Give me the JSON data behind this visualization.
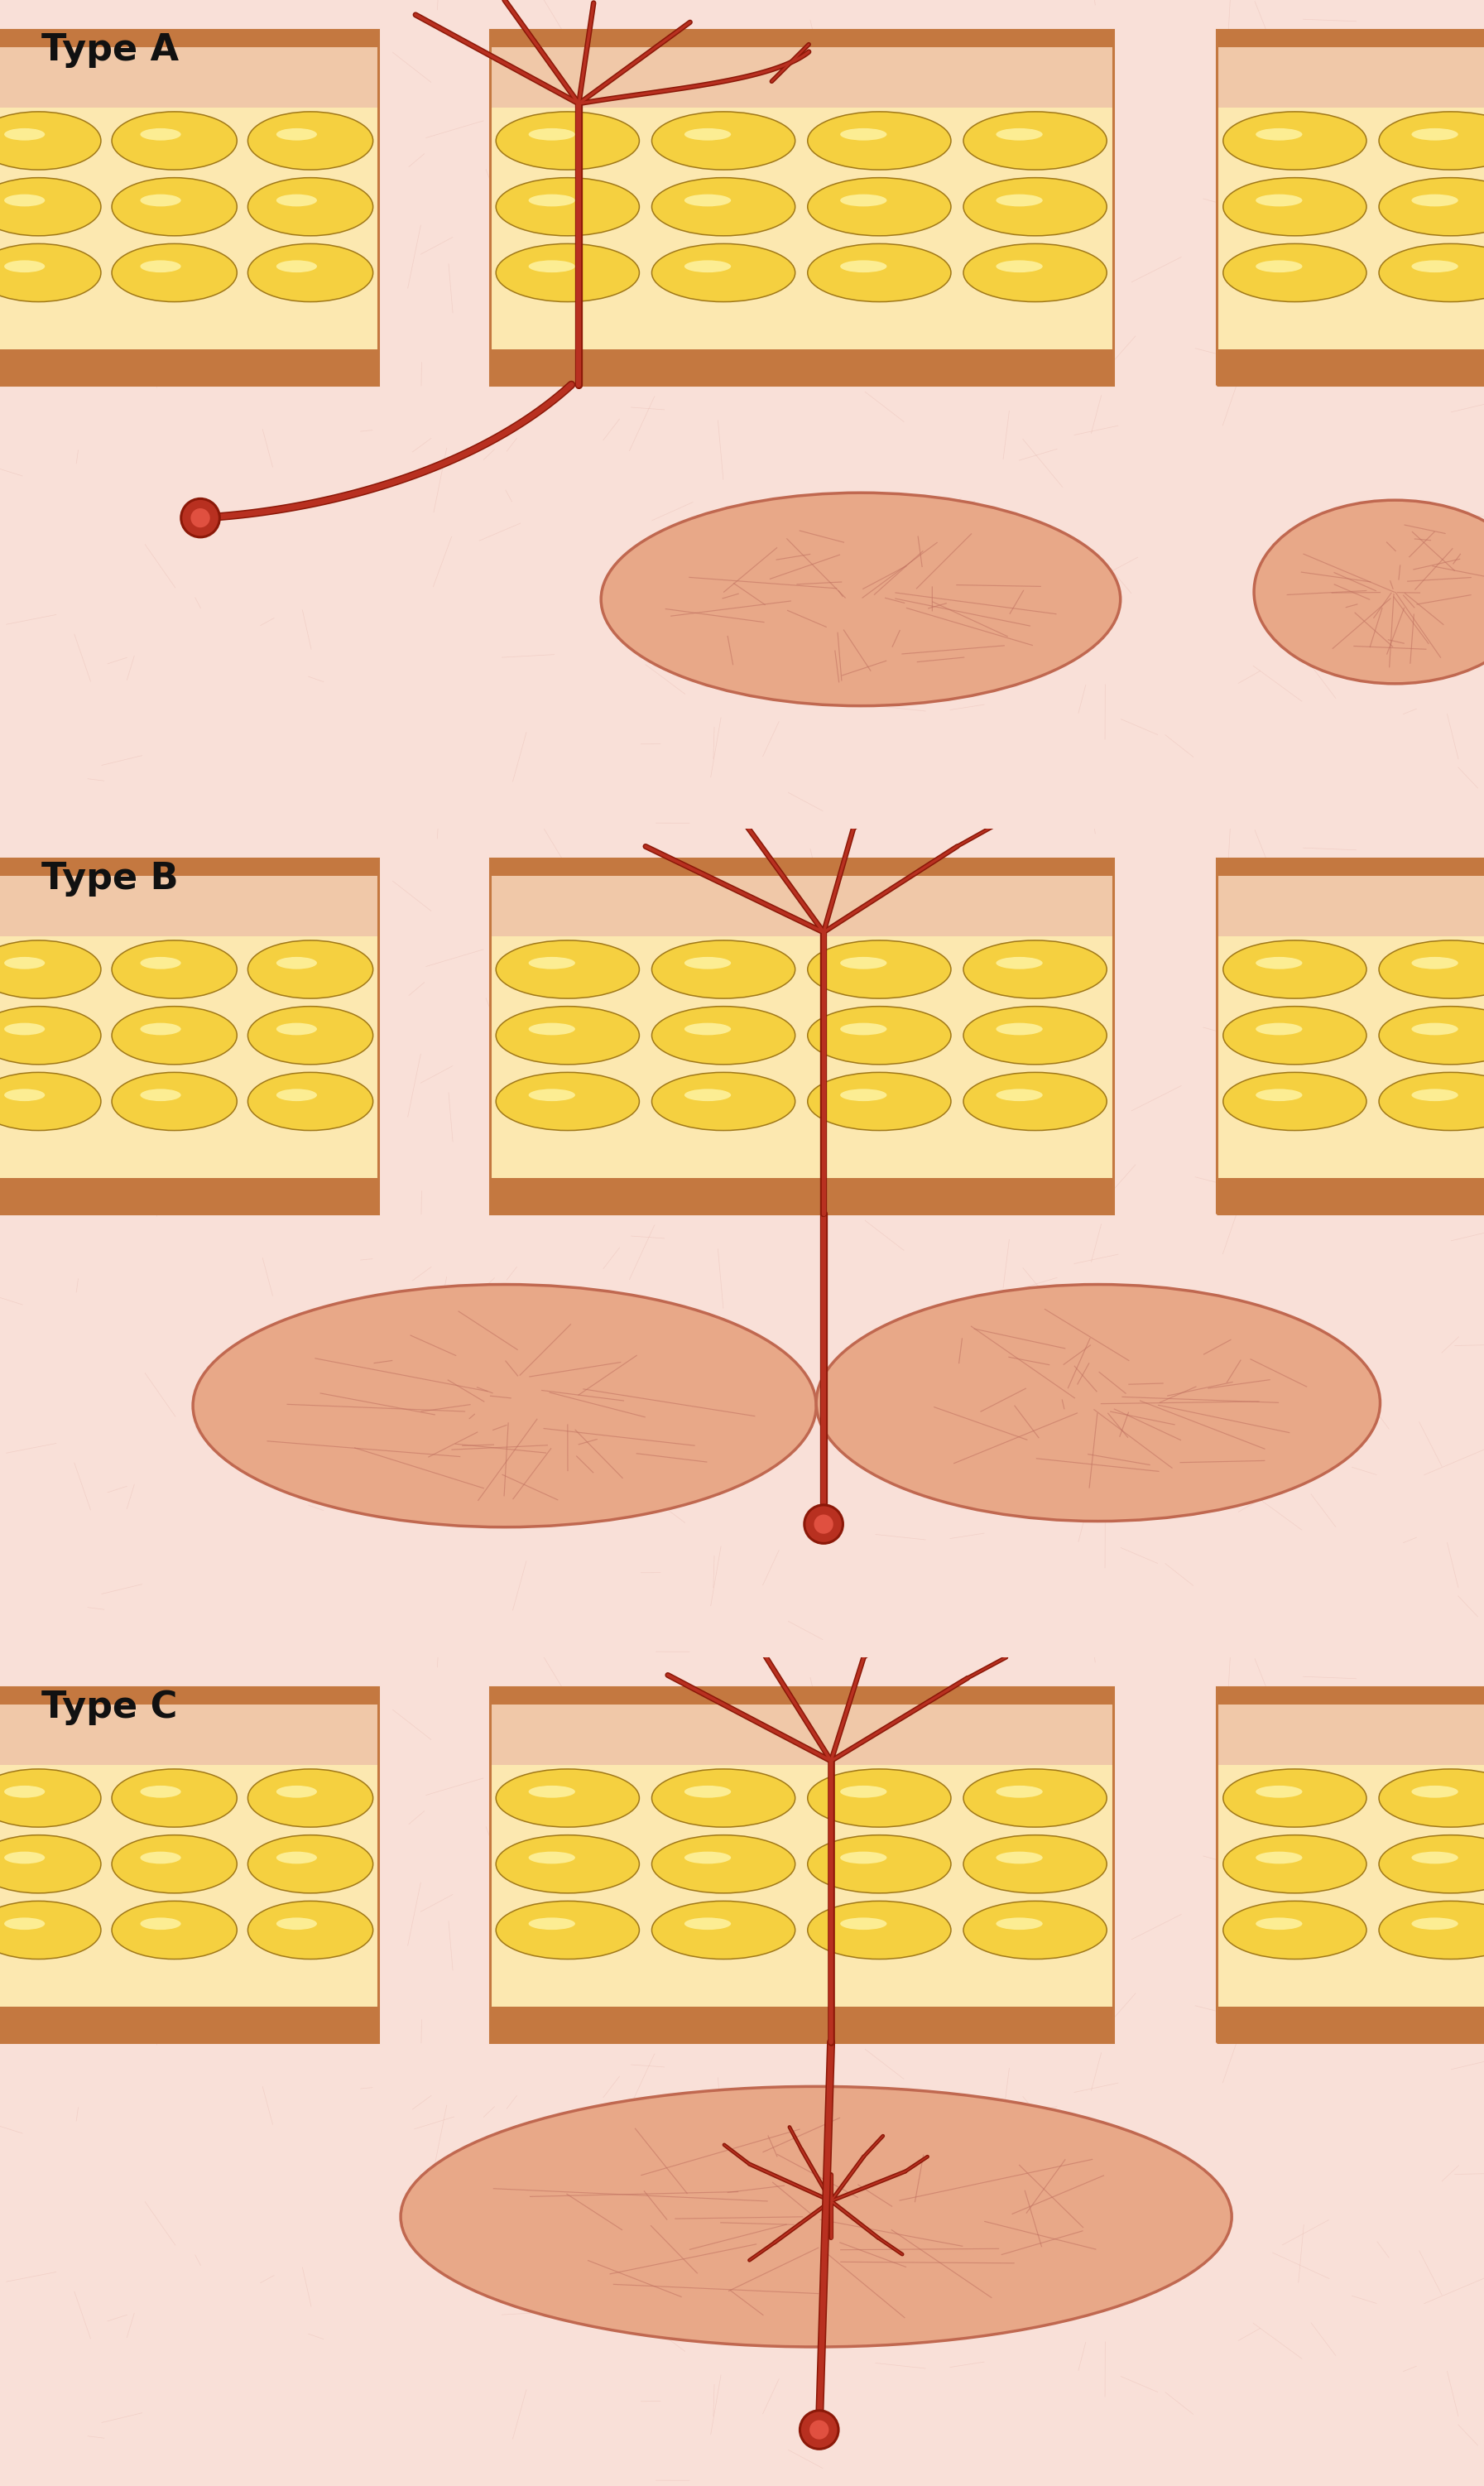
{
  "bg_color": "#ffffff",
  "skin_bg": "#f9e0d8",
  "skin_vein": "#e0aaA0",
  "fascia_brown": "#c47840",
  "dermis_pink": "#f0c8a8",
  "fat_yellow": "#f5d040",
  "fat_yellow_hi": "#fff8b0",
  "fat_outline": "#a07818",
  "fat_bg": "#fce8b0",
  "vessel_dark": "#8b1808",
  "vessel_mid": "#b83020",
  "vessel_light": "#cc4030",
  "muscle_fill": "#e8a888",
  "muscle_border": "#c06850",
  "muscle_texture": "#c07060",
  "dot_outer": "#b83020",
  "dot_inner": "#e05040",
  "label_color": "#111111",
  "label_fs": 32,
  "labels": [
    "Type A",
    "Type B",
    "Type C"
  ],
  "white": "#ffffff"
}
